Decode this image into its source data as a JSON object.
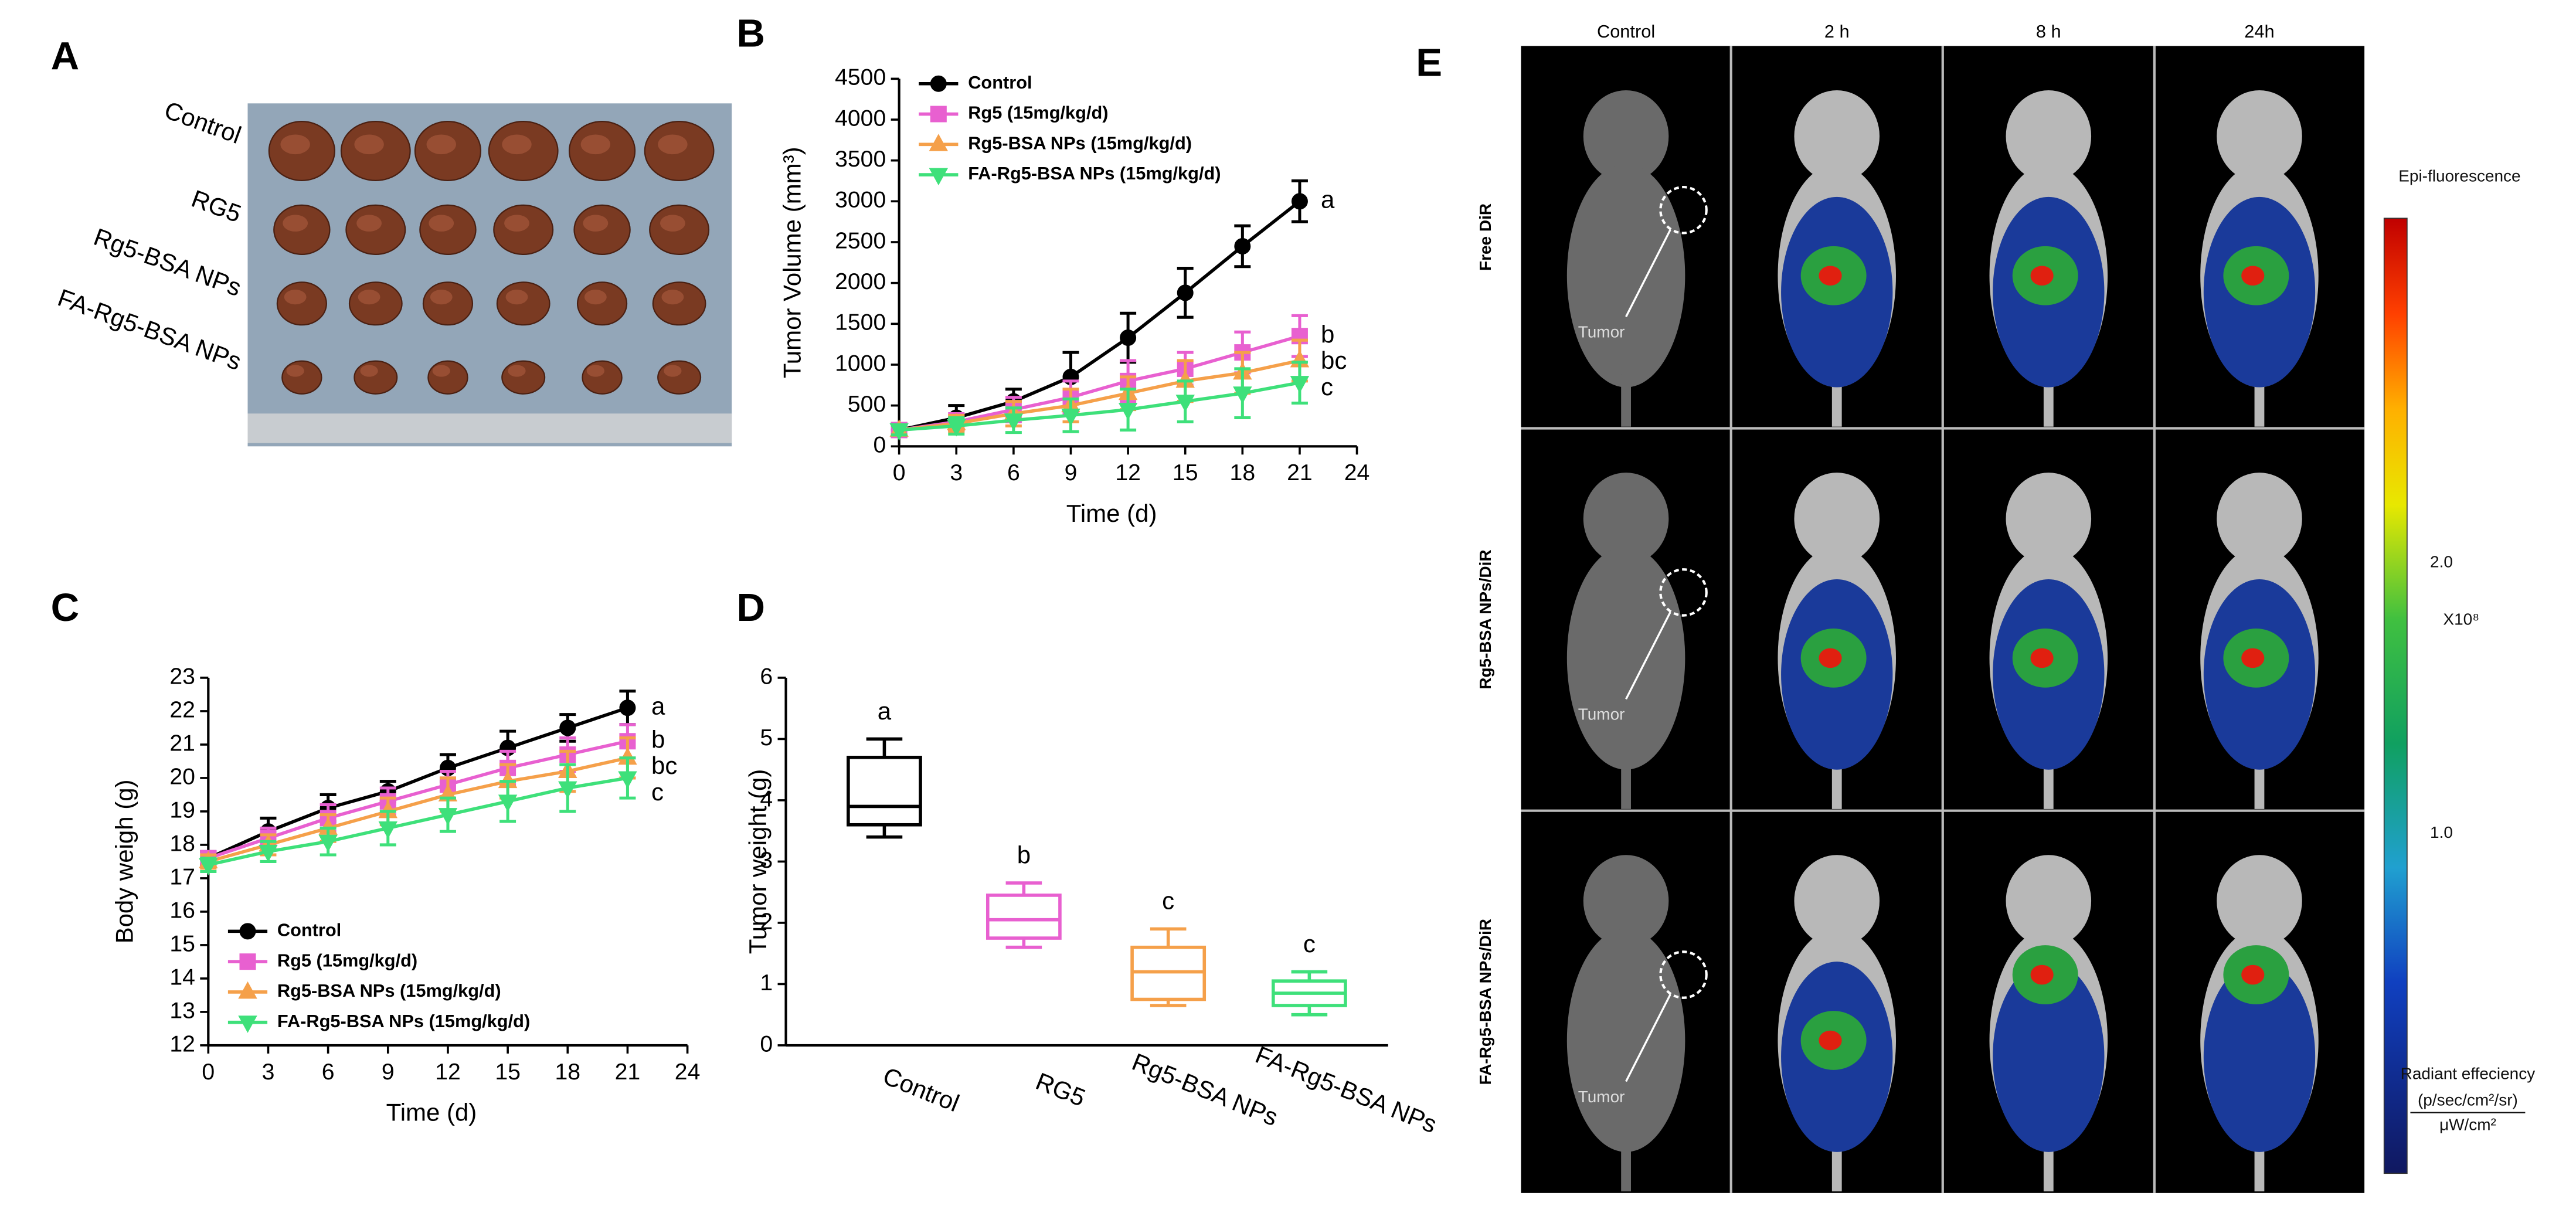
{
  "panels": {
    "A": {
      "label": "A",
      "rows": [
        "Control",
        "RG5",
        "Rg5-BSA NPs",
        "FA-Rg5-BSA NPs"
      ]
    },
    "E": {
      "label": "E",
      "columns": [
        "Control",
        "2 h",
        "8 h",
        "24h"
      ],
      "rows": [
        "Free DiR",
        "Rg5-BSA NPs/DiR",
        "FA-Rg5-BSA NPs/DiR"
      ],
      "pointer": "Tumor",
      "colorbar": {
        "title": "Epi-fluorescence",
        "ticks": [
          "2.0",
          "1.0"
        ],
        "multiplier": "X10⁸",
        "unit_title": "Radiant effeciency",
        "unit_num": "(p/sec/cm²/sr)",
        "unit_den": "μW/cm²"
      }
    }
  },
  "chart_data": [
    {
      "type": "line",
      "panel": "B",
      "xlabel": "Time (d)",
      "ylabel": "Tumor Volume (mm³)",
      "x": [
        0,
        3,
        6,
        9,
        12,
        15,
        18,
        21
      ],
      "xlim": [
        0,
        24
      ],
      "xticks": [
        0,
        3,
        6,
        9,
        12,
        15,
        18,
        21,
        24
      ],
      "ylim": [
        0,
        4500
      ],
      "yticks": [
        0,
        500,
        1000,
        1500,
        2000,
        2500,
        3000,
        3500,
        4000,
        4500
      ],
      "legend": "upper left",
      "series": [
        {
          "name": "Control",
          "color": "#000000",
          "marker": "circle",
          "label": "a",
          "values": [
            200,
            350,
            550,
            850,
            1330,
            1880,
            2450,
            3000
          ],
          "errors": [
            80,
            150,
            150,
            300,
            300,
            300,
            250,
            250
          ]
        },
        {
          "name": "Rg5 (15mg/kg/d)",
          "color": "#e860d0",
          "marker": "square",
          "label": "b",
          "values": [
            200,
            300,
            450,
            600,
            800,
            950,
            1150,
            1350
          ],
          "errors": [
            60,
            100,
            150,
            200,
            250,
            200,
            250,
            250
          ]
        },
        {
          "name": "Rg5-BSA NPs (15mg/kg/d)",
          "color": "#f5a04a",
          "marker": "triangle-up",
          "label": "bc",
          "values": [
            200,
            280,
            400,
            500,
            650,
            800,
            900,
            1050
          ],
          "errors": [
            60,
            100,
            150,
            200,
            200,
            250,
            250,
            250
          ]
        },
        {
          "name": "FA-Rg5-BSA NPs (15mg/kg/d)",
          "color": "#3ee07a",
          "marker": "triangle-down",
          "label": "c",
          "values": [
            200,
            250,
            320,
            380,
            450,
            550,
            650,
            780
          ],
          "errors": [
            60,
            100,
            150,
            200,
            250,
            250,
            300,
            250
          ]
        }
      ]
    },
    {
      "type": "line",
      "panel": "C",
      "xlabel": "Time (d)",
      "ylabel": "Body weigh (g)",
      "x": [
        0,
        3,
        6,
        9,
        12,
        15,
        18,
        21
      ],
      "xlim": [
        0,
        24
      ],
      "xticks": [
        0,
        3,
        6,
        9,
        12,
        15,
        18,
        21,
        24
      ],
      "ylim": [
        12,
        23
      ],
      "yticks": [
        12,
        13,
        14,
        15,
        16,
        17,
        18,
        19,
        20,
        21,
        22,
        23
      ],
      "legend": "lower left",
      "series": [
        {
          "name": "Control",
          "color": "#000000",
          "marker": "circle",
          "label": "a",
          "values": [
            17.6,
            18.4,
            19.1,
            19.6,
            20.3,
            20.9,
            21.5,
            22.1
          ],
          "errors": [
            0.2,
            0.4,
            0.4,
            0.3,
            0.4,
            0.5,
            0.4,
            0.5
          ]
        },
        {
          "name": "Rg5 (15mg/kg/d)",
          "color": "#e860d0",
          "marker": "square",
          "label": "b",
          "values": [
            17.6,
            18.2,
            18.8,
            19.3,
            19.8,
            20.3,
            20.7,
            21.1
          ],
          "errors": [
            0.2,
            0.3,
            0.4,
            0.4,
            0.4,
            0.5,
            0.5,
            0.5
          ]
        },
        {
          "name": "Rg5-BSA NPs (15mg/kg/d)",
          "color": "#f5a04a",
          "marker": "triangle-up",
          "label": "bc",
          "values": [
            17.5,
            18.0,
            18.5,
            19.0,
            19.5,
            19.9,
            20.2,
            20.6
          ],
          "errors": [
            0.2,
            0.3,
            0.4,
            0.4,
            0.5,
            0.5,
            0.6,
            0.6
          ]
        },
        {
          "name": "FA-Rg5-BSA NPs (15mg/kg/d)",
          "color": "#3ee07a",
          "marker": "triangle-down",
          "label": "c",
          "values": [
            17.4,
            17.8,
            18.1,
            18.5,
            18.9,
            19.3,
            19.7,
            20.0
          ],
          "errors": [
            0.2,
            0.3,
            0.4,
            0.5,
            0.5,
            0.6,
            0.7,
            0.6
          ]
        }
      ]
    },
    {
      "type": "box",
      "panel": "D",
      "ylabel": "Tumor weight (g)",
      "categories": [
        "Control",
        "RG5",
        "Rg5-BSA NPs",
        "FA-Rg5-BSA NPs"
      ],
      "colors": [
        "#000000",
        "#e860d0",
        "#f5a04a",
        "#3ee07a"
      ],
      "labels": [
        "a",
        "b",
        "c",
        "c"
      ],
      "min": [
        3.4,
        1.6,
        0.65,
        0.5
      ],
      "q1": [
        3.6,
        1.75,
        0.75,
        0.65
      ],
      "median": [
        3.9,
        2.05,
        1.2,
        0.85
      ],
      "q3": [
        4.7,
        2.45,
        1.6,
        1.05
      ],
      "max": [
        5.0,
        2.65,
        1.9,
        1.2
      ],
      "ylim": [
        0,
        6
      ],
      "yticks": [
        0,
        1,
        2,
        3,
        4,
        5,
        6
      ]
    }
  ]
}
